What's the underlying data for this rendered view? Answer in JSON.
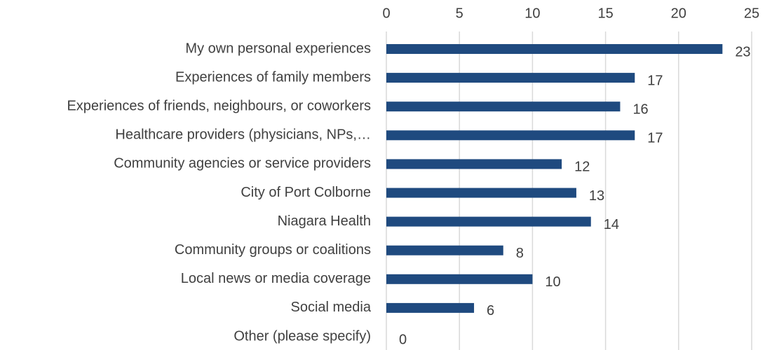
{
  "chart_data": {
    "type": "bar",
    "orientation": "horizontal",
    "categories": [
      "My own personal experiences",
      "Experiences of family members",
      "Experiences of friends, neighbours, or coworkers",
      "Healthcare providers (physicians, NPs,…",
      "Community agencies or service providers",
      "City of Port Colborne",
      "Niagara Health",
      "Community groups or coalitions",
      "Local news or media coverage",
      "Social media",
      "Other (please specify)"
    ],
    "values": [
      23,
      17,
      16,
      17,
      12,
      13,
      14,
      8,
      10,
      6,
      0
    ],
    "color": "#1f4a7f",
    "xlim": [
      0,
      25
    ],
    "xticks": [
      0,
      5,
      10,
      15,
      20,
      25
    ],
    "grid": true
  }
}
